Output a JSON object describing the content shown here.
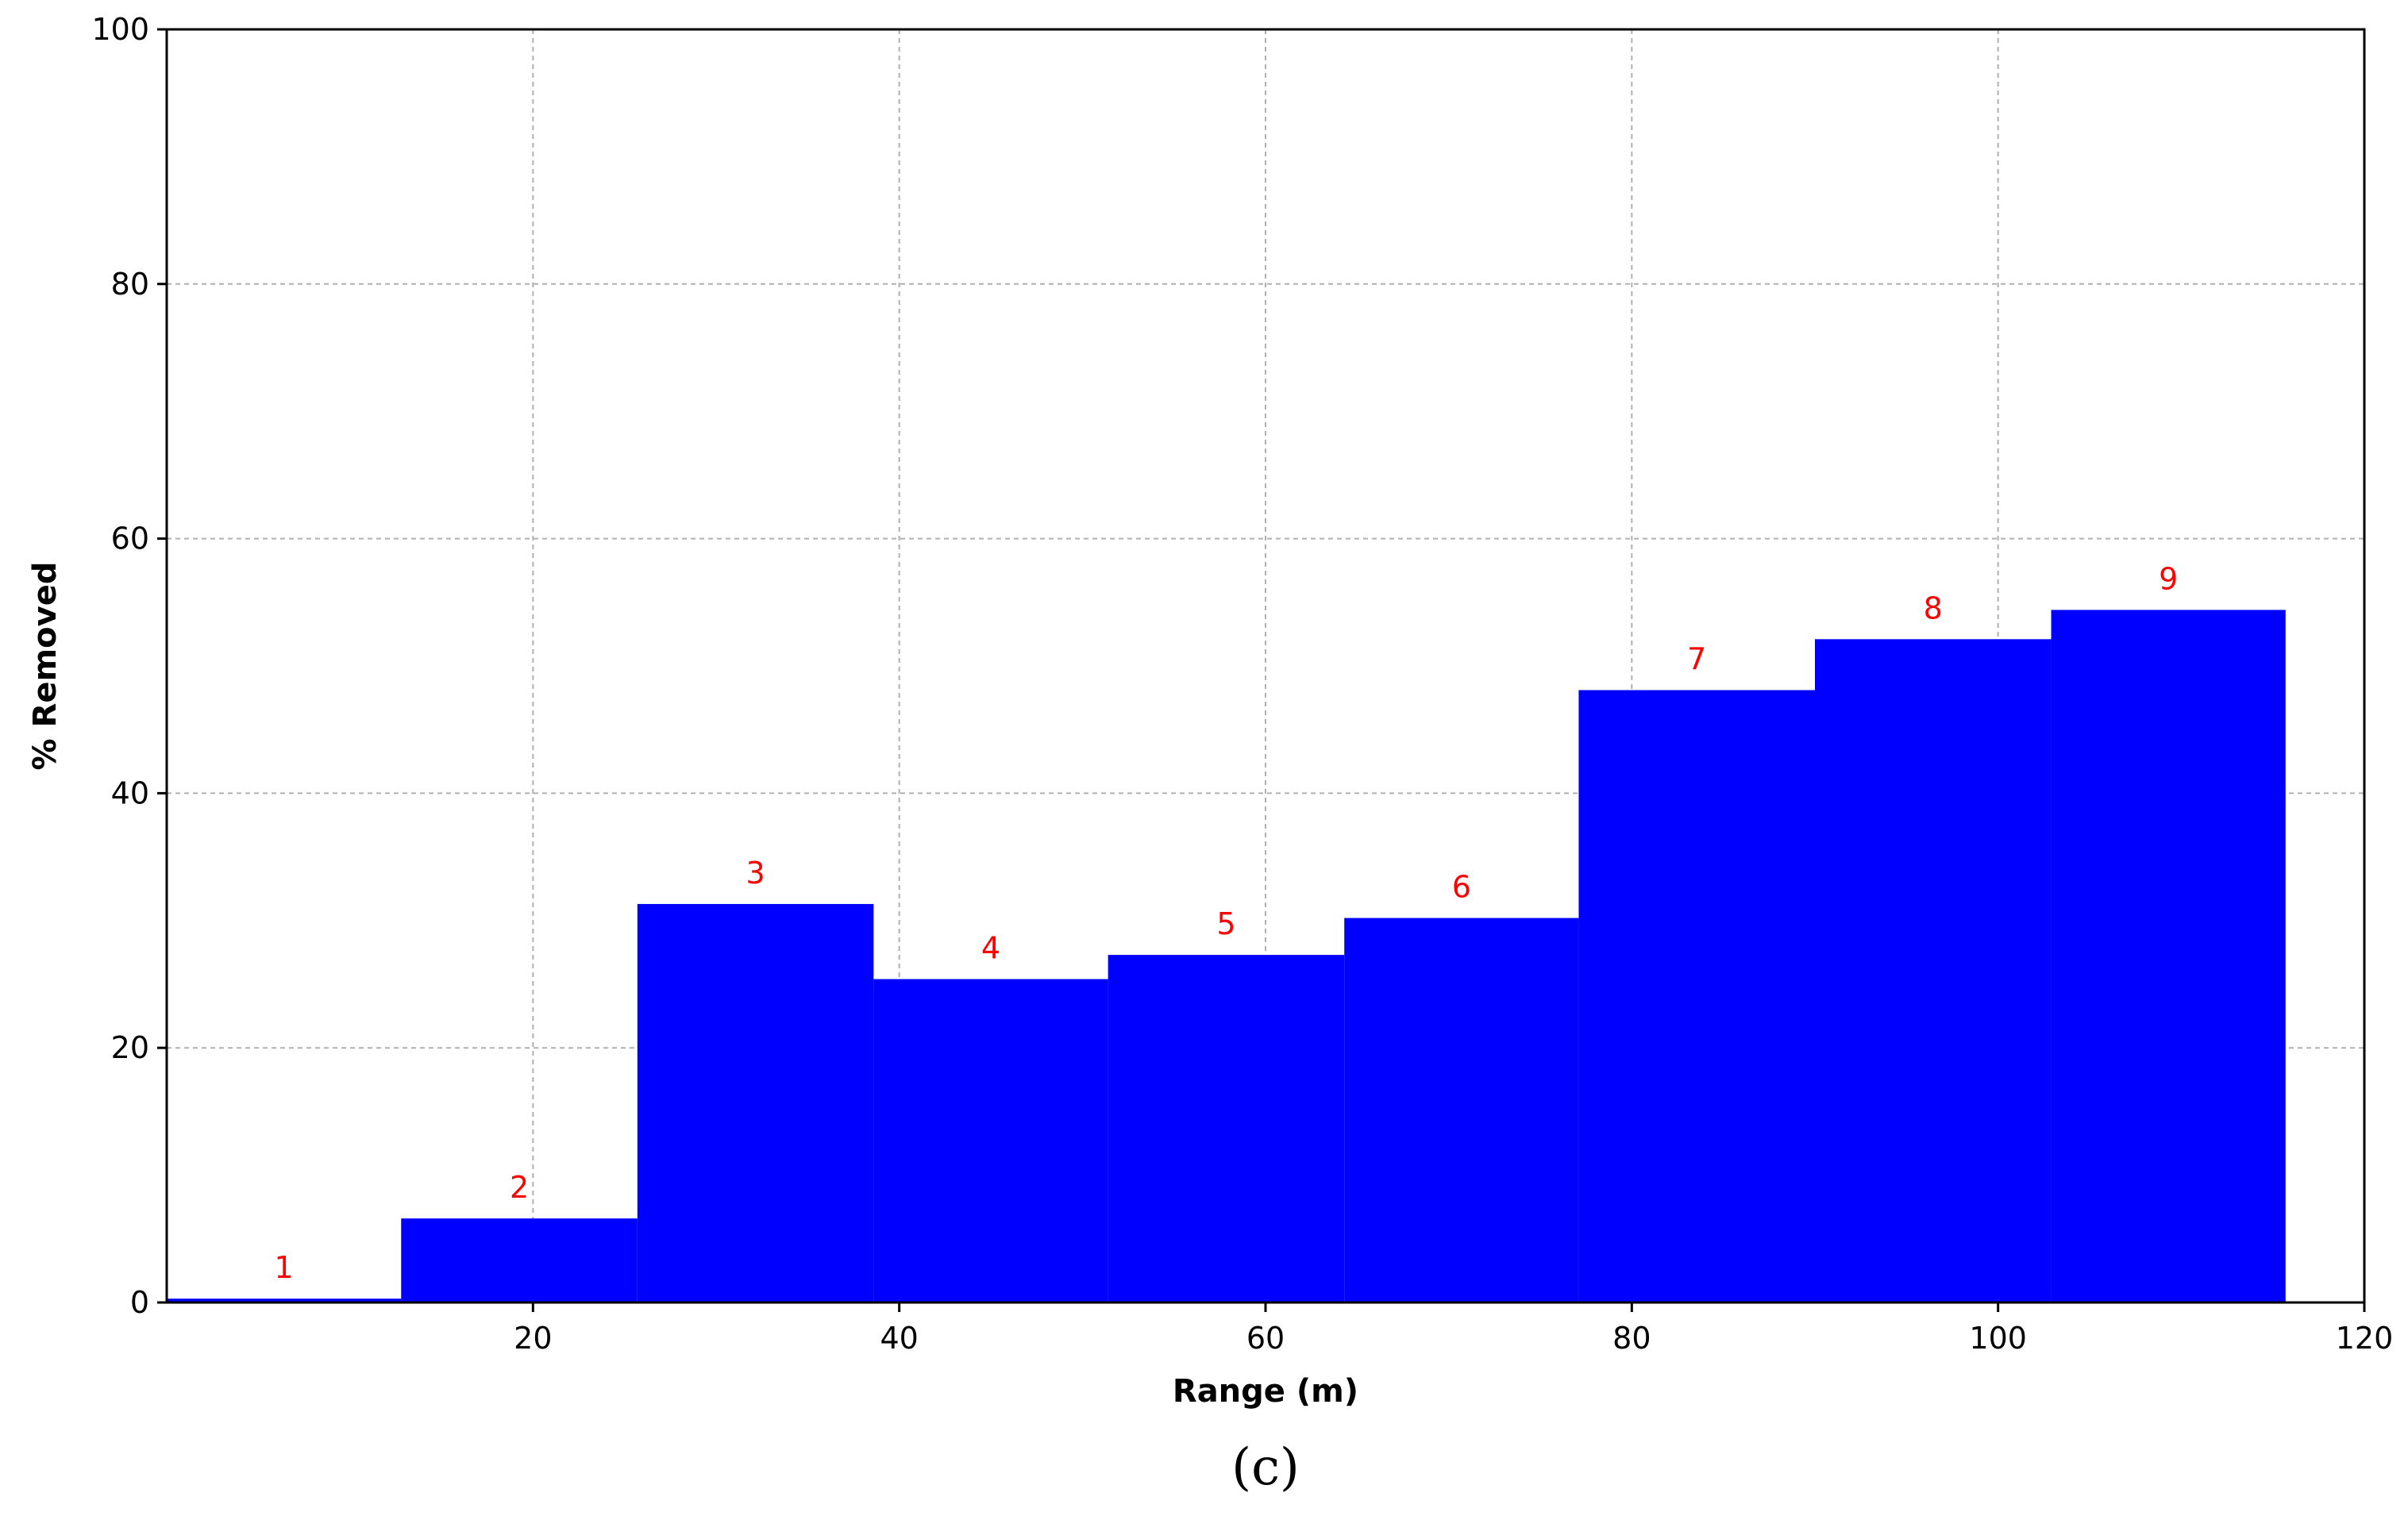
{
  "chart_data": {
    "type": "bar",
    "title": "",
    "xlabel": "Range (m)",
    "ylabel": "% Removed",
    "xlim": [
      0,
      120
    ],
    "ylim": [
      0,
      100
    ],
    "xticks": [
      20,
      40,
      60,
      80,
      100,
      120
    ],
    "yticks": [
      0,
      20,
      40,
      60,
      80,
      100
    ],
    "grid": true,
    "bar_color": "#0000ff",
    "label_color": "#ff0000",
    "bins": [
      {
        "label": "1",
        "x_start": 0.0,
        "x_end": 12.8,
        "value": 0.3
      },
      {
        "label": "2",
        "x_start": 12.8,
        "x_end": 25.7,
        "value": 6.6
      },
      {
        "label": "3",
        "x_start": 25.7,
        "x_end": 38.6,
        "value": 31.3
      },
      {
        "label": "4",
        "x_start": 38.6,
        "x_end": 51.4,
        "value": 25.4
      },
      {
        "label": "5",
        "x_start": 51.4,
        "x_end": 64.3,
        "value": 27.3
      },
      {
        "label": "6",
        "x_start": 64.3,
        "x_end": 77.1,
        "value": 30.2
      },
      {
        "label": "7",
        "x_start": 77.1,
        "x_end": 90.0,
        "value": 48.1
      },
      {
        "label": "8",
        "x_start": 90.0,
        "x_end": 102.9,
        "value": 52.1
      },
      {
        "label": "9",
        "x_start": 102.9,
        "x_end": 115.7,
        "value": 54.4
      }
    ]
  },
  "caption": "(c)"
}
